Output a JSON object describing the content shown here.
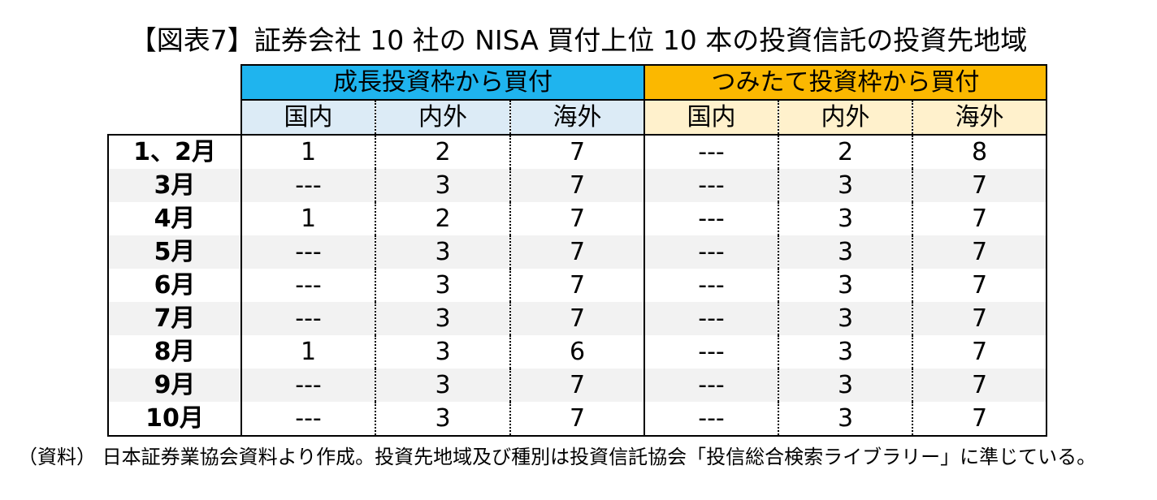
{
  "title": "【図表7】証券会社 10 社の NISA 買付上位 10 本の投資信託の投資先地域",
  "table": {
    "group_headers": [
      "成長投資枠から買付",
      "つみたて投資枠から買付"
    ],
    "sub_headers": [
      "国内",
      "内外",
      "海外",
      "国内",
      "内外",
      "海外"
    ],
    "rows": [
      {
        "month": "1、2月",
        "values": [
          "1",
          "2",
          "7",
          "---",
          "2",
          "8"
        ]
      },
      {
        "month": "3月",
        "values": [
          "---",
          "3",
          "7",
          "---",
          "3",
          "7"
        ]
      },
      {
        "month": "4月",
        "values": [
          "1",
          "2",
          "7",
          "---",
          "3",
          "7"
        ]
      },
      {
        "month": "5月",
        "values": [
          "---",
          "3",
          "7",
          "---",
          "3",
          "7"
        ]
      },
      {
        "month": "6月",
        "values": [
          "---",
          "3",
          "7",
          "---",
          "3",
          "7"
        ]
      },
      {
        "month": "7月",
        "values": [
          "---",
          "3",
          "7",
          "---",
          "3",
          "7"
        ]
      },
      {
        "month": "8月",
        "values": [
          "1",
          "3",
          "6",
          "---",
          "3",
          "7"
        ]
      },
      {
        "month": "9月",
        "values": [
          "---",
          "3",
          "7",
          "---",
          "3",
          "7"
        ]
      },
      {
        "month": "10月",
        "values": [
          "---",
          "3",
          "7",
          "---",
          "3",
          "7"
        ]
      }
    ]
  },
  "footnote": "（資料） 日本証券業協会資料より作成。投資先地域及び種別は投資信託協会「投信総合検索ライブラリー」に準じている。",
  "colors": {
    "growth_header": "#1fb4ee",
    "tsumitate_header": "#fbb800",
    "growth_subheader": "#dcebf6",
    "tsumitate_subheader": "#fff1cc",
    "alt_row": "#f2f2f2"
  }
}
